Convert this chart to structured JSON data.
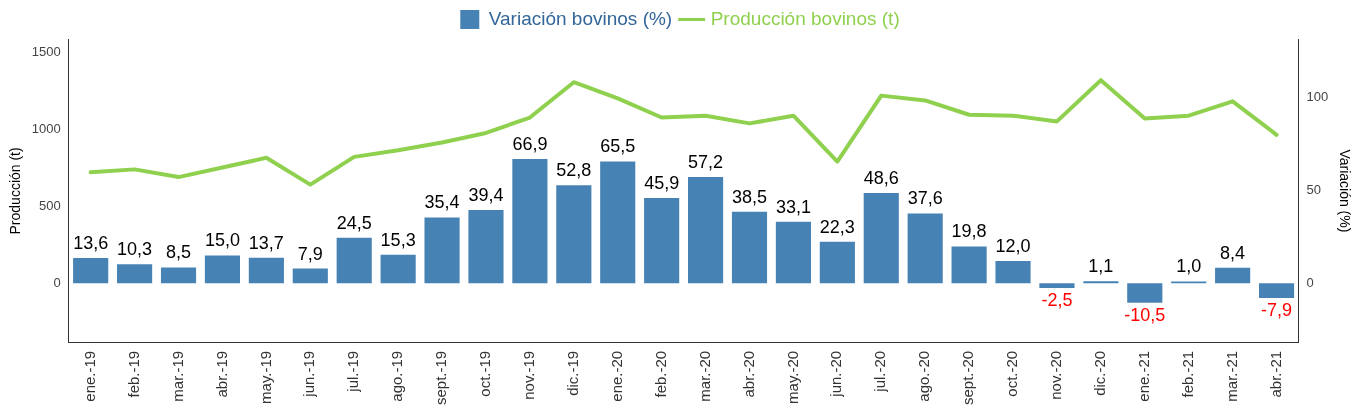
{
  "chart_data": {
    "type": "bar",
    "xlabel": null,
    "ylabel": "Producción (t)",
    "y2label": "Variación (%)",
    "categories": [
      "ene.-19",
      "feb.-19",
      "mar.-19",
      "abr.-19",
      "may.-19",
      "jun.-19",
      "jul.-19",
      "ago.-19",
      "sept.-19",
      "oct.-19",
      "nov.-19",
      "dic.-19",
      "ene.-20",
      "feb.-20",
      "mar.-20",
      "abr.-20",
      "may.-20",
      "jun.-20",
      "jul.-20",
      "ago.-20",
      "sept.-20",
      "oct.-20",
      "nov.-20",
      "dic.-20",
      "ene.-21",
      "feb.-21",
      "mar.-21",
      "abr.-21"
    ],
    "series": [
      {
        "name": "Variación bovinos (%)",
        "axis": "y2",
        "color": "#4682b4",
        "values": [
          13.6,
          10.3,
          8.5,
          15.0,
          13.7,
          7.9,
          24.5,
          15.3,
          35.4,
          39.4,
          66.9,
          52.8,
          65.5,
          45.9,
          57.2,
          38.5,
          33.1,
          22.3,
          48.6,
          37.6,
          19.8,
          12.0,
          -2.5,
          1.1,
          -10.5,
          1.0,
          8.4,
          -7.9
        ],
        "value_labels": [
          "13,6",
          "10,3",
          "8,5",
          "15,0",
          "13,7",
          "7,9",
          "24,5",
          "15,3",
          "35,4",
          "39,4",
          "66,9",
          "52,8",
          "65,5",
          "45,9",
          "57,2",
          "38,5",
          "33,1",
          "22,3",
          "48,6",
          "37,6",
          "19,8",
          "12,0",
          "-2,5",
          "1,1",
          "-10,5",
          "1,0",
          "8,4",
          "-7,9"
        ]
      },
      {
        "name": "Producción bovinos (t)",
        "type": "line",
        "axis": "y",
        "color": "#8fd14f",
        "values": [
          720,
          739,
          689,
          751,
          814,
          640,
          820,
          863,
          913,
          975,
          1075,
          1304,
          1199,
          1075,
          1087,
          1037,
          1087,
          789,
          1217,
          1186,
          1093,
          1087,
          1050,
          1317,
          1068,
          1087,
          1180,
          963
        ]
      }
    ],
    "ylim": [
      -385,
      1584
    ],
    "yticks": [
      0,
      500,
      1000,
      1500
    ],
    "y2lim": [
      -32,
      131.4
    ],
    "y2ticks": [
      0,
      50,
      100
    ],
    "legend": "top",
    "grid": false,
    "marker": "none",
    "line_style": "solid"
  }
}
